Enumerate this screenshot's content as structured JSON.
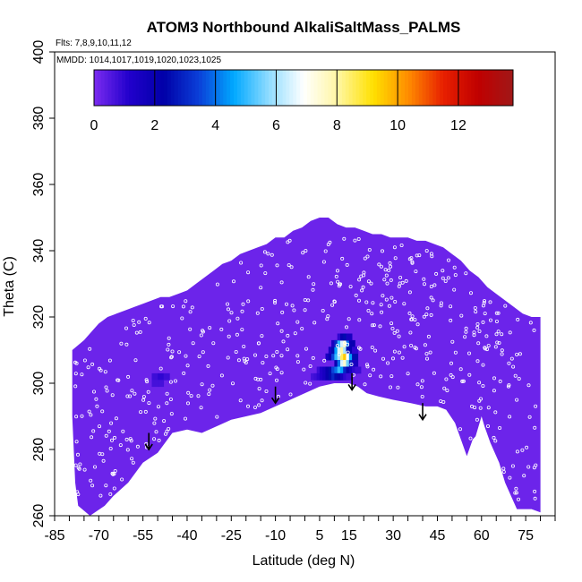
{
  "chart_data": {
    "type": "heatmap",
    "title": "ATOM3 Northbound AlkaliSaltMass_PALMS",
    "flights_label": "Flts: 7,8,9,10,11,12",
    "mmdd_label": "MMDD: 1014,1017,1019,1020,1023,1025",
    "xlabel": "Latitude (deg N)",
    "ylabel": "Theta (C)",
    "xlim": [
      -85,
      85
    ],
    "ylim": [
      260,
      400
    ],
    "x_ticks": [
      -85,
      -70,
      -55,
      -40,
      -25,
      -10,
      5,
      15,
      30,
      45,
      60,
      75
    ],
    "y_ticks": [
      260,
      280,
      300,
      320,
      340,
      360,
      380,
      400
    ],
    "colorbar": {
      "min": 0,
      "max": 13.8,
      "ticks": [
        0,
        2,
        4,
        6,
        8,
        10,
        12
      ],
      "colors": [
        "#7b2cf0",
        "#2200cc",
        "#0000a8",
        "#0b3fd8",
        "#00a8ff",
        "#8fdcff",
        "#ffffff",
        "#fff6a0",
        "#ffe000",
        "#ff8c00",
        "#e82000",
        "#c00000",
        "#a01818"
      ]
    },
    "background_value": 0.2,
    "domain_top": [
      [
        -79,
        310
      ],
      [
        -75,
        313
      ],
      [
        -72,
        316
      ],
      [
        -70,
        318
      ],
      [
        -67,
        320
      ],
      [
        -64,
        321
      ],
      [
        -61,
        322
      ],
      [
        -58,
        323
      ],
      [
        -55,
        324
      ],
      [
        -52,
        325
      ],
      [
        -49,
        326
      ],
      [
        -46,
        326
      ],
      [
        -43,
        327
      ],
      [
        -40,
        328
      ],
      [
        -37,
        330
      ],
      [
        -34,
        332
      ],
      [
        -31,
        334
      ],
      [
        -28,
        336
      ],
      [
        -25,
        337
      ],
      [
        -22,
        339
      ],
      [
        -19,
        340
      ],
      [
        -16,
        341
      ],
      [
        -13,
        342
      ],
      [
        -10,
        344
      ],
      [
        -7,
        344
      ],
      [
        -4,
        346
      ],
      [
        -1,
        347
      ],
      [
        2,
        349
      ],
      [
        5,
        350
      ],
      [
        8,
        350
      ],
      [
        11,
        348
      ],
      [
        14,
        347
      ],
      [
        17,
        347
      ],
      [
        20,
        346
      ],
      [
        23,
        345
      ],
      [
        26,
        345
      ],
      [
        29,
        344
      ],
      [
        32,
        344
      ],
      [
        35,
        344
      ],
      [
        38,
        343
      ],
      [
        41,
        343
      ],
      [
        44,
        342
      ],
      [
        47,
        341
      ],
      [
        50,
        339
      ],
      [
        53,
        337
      ],
      [
        56,
        334
      ],
      [
        59,
        332
      ],
      [
        62,
        329
      ],
      [
        65,
        327
      ],
      [
        68,
        325
      ],
      [
        71,
        323
      ],
      [
        74,
        321
      ],
      [
        77,
        320
      ],
      [
        80,
        320
      ]
    ],
    "domain_bottom": [
      [
        80,
        261
      ],
      [
        77,
        262
      ],
      [
        72,
        262
      ],
      [
        68,
        270
      ],
      [
        66,
        276
      ],
      [
        63,
        282
      ],
      [
        61,
        287
      ],
      [
        60,
        290
      ],
      [
        58,
        284
      ],
      [
        57,
        283
      ],
      [
        55,
        278
      ],
      [
        53,
        283
      ],
      [
        51,
        288
      ],
      [
        48,
        292
      ],
      [
        45,
        293
      ],
      [
        41,
        293
      ],
      [
        36,
        294
      ],
      [
        30,
        295
      ],
      [
        25,
        296
      ],
      [
        21,
        297
      ],
      [
        18,
        299
      ],
      [
        15,
        300
      ],
      [
        10,
        300
      ],
      [
        5,
        299
      ],
      [
        0,
        297
      ],
      [
        -5,
        295
      ],
      [
        -10,
        293
      ],
      [
        -15,
        291
      ],
      [
        -25,
        289
      ],
      [
        -30,
        287
      ],
      [
        -35,
        285
      ],
      [
        -40,
        286
      ],
      [
        -45,
        285
      ],
      [
        -50,
        279
      ],
      [
        -55,
        276
      ],
      [
        -60,
        270
      ],
      [
        -65,
        266
      ],
      [
        -68,
        263
      ],
      [
        -73,
        260
      ],
      [
        -77,
        263
      ],
      [
        -78,
        270
      ],
      [
        -79,
        290
      ]
    ],
    "cells": [
      [
        8,
        308,
        1.5
      ],
      [
        9,
        308,
        2.0
      ],
      [
        10,
        308,
        3.5
      ],
      [
        11,
        308,
        5.0
      ],
      [
        12,
        308,
        6.0
      ],
      [
        13,
        308,
        8.5
      ],
      [
        14,
        308,
        9.5
      ],
      [
        15,
        308,
        7.0
      ],
      [
        16,
        308,
        4.5
      ],
      [
        17,
        308,
        2.5
      ],
      [
        9,
        310,
        1.5
      ],
      [
        10,
        310,
        2.5
      ],
      [
        11,
        310,
        4.5
      ],
      [
        12,
        310,
        6.5
      ],
      [
        13,
        310,
        8.0
      ],
      [
        14,
        310,
        6.0
      ],
      [
        15,
        310,
        5.0
      ],
      [
        16,
        310,
        3.0
      ],
      [
        17,
        310,
        1.5
      ],
      [
        10,
        312,
        1.5
      ],
      [
        11,
        312,
        3.0
      ],
      [
        12,
        312,
        5.0
      ],
      [
        13,
        312,
        6.5
      ],
      [
        14,
        312,
        7.5
      ],
      [
        15,
        312,
        4.0
      ],
      [
        16,
        312,
        2.0
      ],
      [
        11,
        306,
        2.0
      ],
      [
        12,
        306,
        4.0
      ],
      [
        13,
        306,
        6.5
      ],
      [
        14,
        306,
        7.5
      ],
      [
        15,
        306,
        5.5
      ],
      [
        16,
        306,
        3.0
      ],
      [
        17,
        306,
        1.5
      ],
      [
        5,
        304,
        0.8
      ],
      [
        6,
        304,
        1.2
      ],
      [
        7,
        304,
        1.5
      ],
      [
        8,
        304,
        2.0
      ],
      [
        9,
        304,
        2.5
      ],
      [
        10,
        304,
        3.5
      ],
      [
        11,
        304,
        4.0
      ],
      [
        12,
        304,
        5.0
      ],
      [
        13,
        304,
        4.5
      ],
      [
        14,
        304,
        3.0
      ],
      [
        15,
        304,
        2.0
      ],
      [
        16,
        304,
        1.5
      ],
      [
        17,
        304,
        1.0
      ],
      [
        18,
        304,
        0.8
      ],
      [
        3,
        302,
        0.7
      ],
      [
        4,
        302,
        0.8
      ],
      [
        5,
        302,
        1.0
      ],
      [
        6,
        302,
        1.2
      ],
      [
        7,
        302,
        1.5
      ],
      [
        8,
        302,
        2.0
      ],
      [
        9,
        302,
        2.5
      ],
      [
        10,
        302,
        3.0
      ],
      [
        11,
        302,
        2.5
      ],
      [
        12,
        302,
        2.0
      ],
      [
        13,
        302,
        1.5
      ],
      [
        14,
        302,
        1.0
      ],
      [
        15,
        302,
        0.8
      ],
      [
        12,
        314,
        1.0
      ],
      [
        13,
        314,
        2.0
      ],
      [
        14,
        314,
        2.5
      ],
      [
        15,
        314,
        1.5
      ],
      [
        15,
        310,
        2.5
      ],
      [
        16,
        310,
        2.0
      ],
      [
        17,
        310,
        1.0
      ],
      [
        -51,
        302,
        0.8
      ],
      [
        -49,
        302,
        1.0
      ],
      [
        -47,
        302,
        0.8
      ],
      [
        -51,
        300,
        0.7
      ],
      [
        -49,
        300,
        0.7
      ]
    ],
    "arrows": [
      [
        -53,
        285,
        280
      ],
      [
        -10,
        299,
        294
      ],
      [
        16,
        303,
        298
      ],
      [
        40,
        294,
        289
      ]
    ]
  }
}
